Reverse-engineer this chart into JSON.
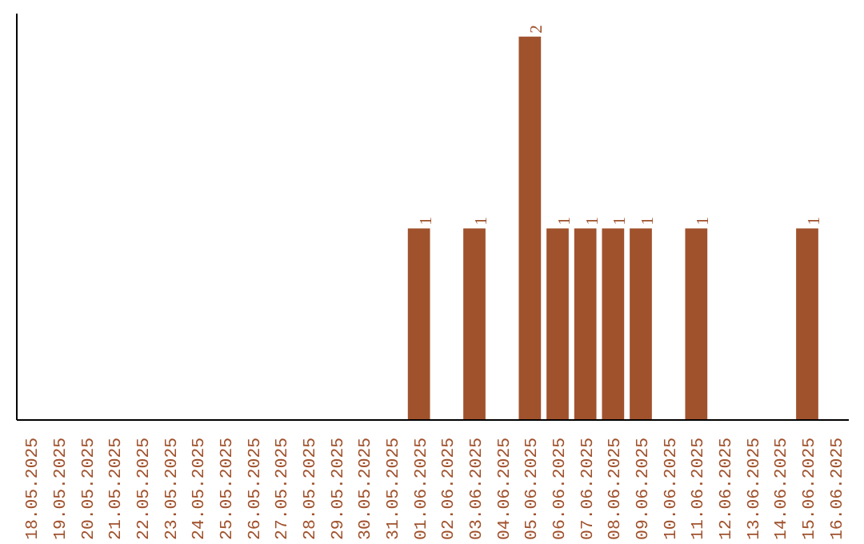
{
  "chart_data": {
    "type": "bar",
    "categories": [
      "18.05.2025",
      "19.05.2025",
      "20.05.2025",
      "21.05.2025",
      "22.05.2025",
      "23.05.2025",
      "24.05.2025",
      "25.05.2025",
      "26.05.2025",
      "27.05.2025",
      "28.05.2025",
      "29.05.2025",
      "30.05.2025",
      "31.05.2025",
      "01.06.2025",
      "02.06.2025",
      "03.06.2025",
      "04.06.2025",
      "05.06.2025",
      "06.06.2025",
      "07.06.2025",
      "08.06.2025",
      "09.06.2025",
      "10.06.2025",
      "11.06.2025",
      "12.06.2025",
      "13.06.2025",
      "14.06.2025",
      "15.06.2025",
      "16.06.2025"
    ],
    "values": [
      null,
      null,
      null,
      null,
      null,
      null,
      null,
      null,
      null,
      null,
      null,
      null,
      null,
      null,
      1,
      null,
      1,
      null,
      2,
      1,
      1,
      1,
      1,
      null,
      1,
      null,
      null,
      null,
      1,
      null
    ],
    "data_labels": true,
    "color": "#a0522d",
    "tick_labels": "x"
  }
}
